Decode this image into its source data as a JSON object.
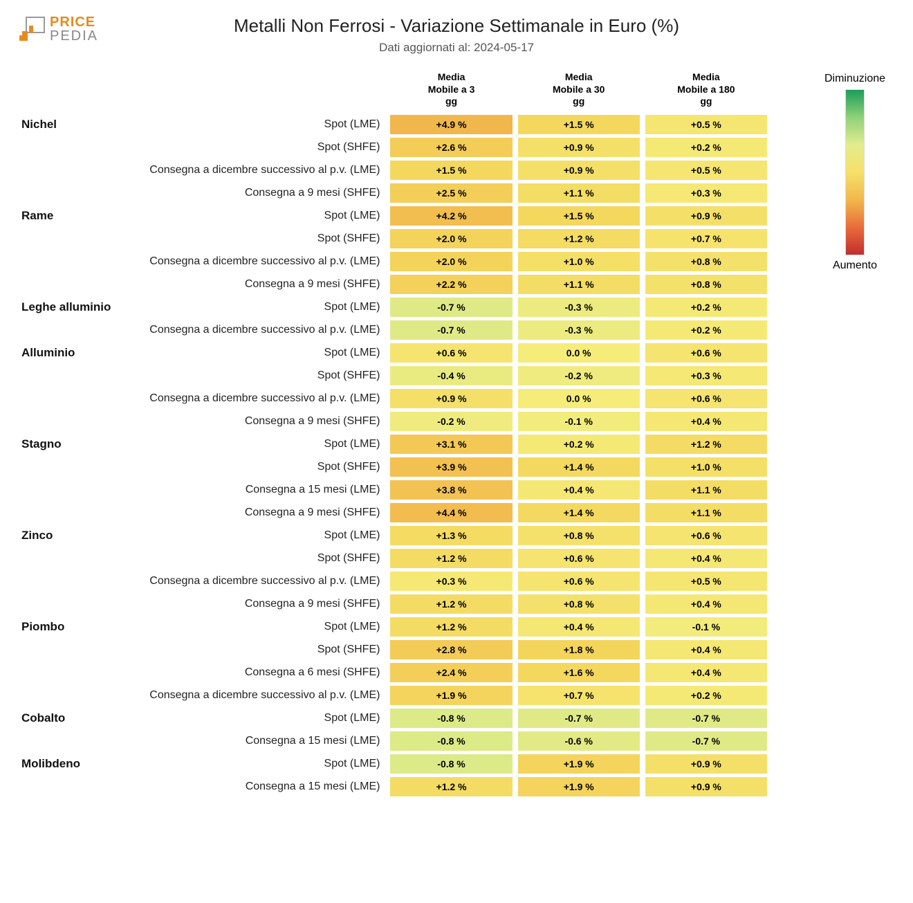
{
  "logo": {
    "brand_top": "PRICE",
    "brand_bottom": "PEDIA",
    "accent": "#e78b1f",
    "gray": "#9a9a9a"
  },
  "title": "Metalli Non Ferrosi - Variazione Settimanale in Euro (%)",
  "subtitle": "Dati aggiornati al: 2024-05-17",
  "columns": [
    "Media\nMobile a 3\ngg",
    "Media\nMobile a 30\ngg",
    "Media\nMobile a 180\ngg"
  ],
  "legend": {
    "top": "Diminuzione",
    "bottom": "Aumento",
    "gradient_stops": [
      "#1b9e5a",
      "#8fd17a",
      "#e3ec8e",
      "#f6e06a",
      "#f2b84c",
      "#e96c3c",
      "#c22e2e"
    ]
  },
  "scale": {
    "neg": -1.0,
    "mid": 0.0,
    "pos": 5.0,
    "color_neg": "#d6e98c",
    "color_zero": "#f5ec7a",
    "color_low": "#f4d85e",
    "color_high": "#f1b64b"
  },
  "groups": [
    {
      "name": "Nichel",
      "rows": [
        {
          "label": "Spot (LME)",
          "v": [
            4.9,
            1.5,
            0.5
          ]
        },
        {
          "label": "Spot (SHFE)",
          "v": [
            2.6,
            0.9,
            0.2
          ]
        },
        {
          "label": "Consegna a dicembre successivo al p.v. (LME)",
          "v": [
            1.5,
            0.9,
            0.5
          ]
        },
        {
          "label": "Consegna a 9 mesi (SHFE)",
          "v": [
            2.5,
            1.1,
            0.3
          ]
        }
      ]
    },
    {
      "name": "Rame",
      "rows": [
        {
          "label": "Spot (LME)",
          "v": [
            4.2,
            1.5,
            0.9
          ]
        },
        {
          "label": "Spot (SHFE)",
          "v": [
            2.0,
            1.2,
            0.7
          ]
        },
        {
          "label": "Consegna a dicembre successivo al p.v. (LME)",
          "v": [
            2.0,
            1.0,
            0.8
          ]
        },
        {
          "label": "Consegna a 9 mesi (SHFE)",
          "v": [
            2.2,
            1.1,
            0.8
          ]
        }
      ]
    },
    {
      "name": "Leghe alluminio",
      "rows": [
        {
          "label": "Spot (LME)",
          "v": [
            -0.7,
            -0.3,
            0.2
          ]
        },
        {
          "label": "Consegna a dicembre successivo al p.v. (LME)",
          "v": [
            -0.7,
            -0.3,
            0.2
          ]
        }
      ]
    },
    {
      "name": "Alluminio",
      "rows": [
        {
          "label": "Spot (LME)",
          "v": [
            0.6,
            0.0,
            0.6
          ]
        },
        {
          "label": "Spot (SHFE)",
          "v": [
            -0.4,
            -0.2,
            0.3
          ]
        },
        {
          "label": "Consegna a dicembre successivo al p.v. (LME)",
          "v": [
            0.9,
            0.0,
            0.6
          ]
        },
        {
          "label": "Consegna a 9 mesi (SHFE)",
          "v": [
            -0.2,
            -0.1,
            0.4
          ]
        }
      ]
    },
    {
      "name": "Stagno",
      "rows": [
        {
          "label": "Spot (LME)",
          "v": [
            3.1,
            0.2,
            1.2
          ]
        },
        {
          "label": "Spot (SHFE)",
          "v": [
            3.9,
            1.4,
            1.0
          ]
        },
        {
          "label": "Consegna a 15 mesi (LME)",
          "v": [
            3.8,
            0.4,
            1.1
          ]
        },
        {
          "label": "Consegna a 9 mesi (SHFE)",
          "v": [
            4.4,
            1.4,
            1.1
          ]
        }
      ]
    },
    {
      "name": "Zinco",
      "rows": [
        {
          "label": "Spot (LME)",
          "v": [
            1.3,
            0.8,
            0.6
          ]
        },
        {
          "label": "Spot (SHFE)",
          "v": [
            1.2,
            0.6,
            0.4
          ]
        },
        {
          "label": "Consegna a dicembre successivo al p.v. (LME)",
          "v": [
            0.3,
            0.6,
            0.5
          ]
        },
        {
          "label": "Consegna a 9 mesi (SHFE)",
          "v": [
            1.2,
            0.8,
            0.4
          ]
        }
      ]
    },
    {
      "name": "Piombo",
      "rows": [
        {
          "label": "Spot (LME)",
          "v": [
            1.2,
            0.4,
            -0.1
          ]
        },
        {
          "label": "Spot (SHFE)",
          "v": [
            2.8,
            1.8,
            0.4
          ]
        },
        {
          "label": "Consegna a 6 mesi (SHFE)",
          "v": [
            2.4,
            1.6,
            0.4
          ]
        },
        {
          "label": "Consegna a dicembre successivo al p.v. (LME)",
          "v": [
            1.9,
            0.7,
            0.2
          ]
        }
      ]
    },
    {
      "name": "Cobalto",
      "rows": [
        {
          "label": "Spot (LME)",
          "v": [
            -0.8,
            -0.7,
            -0.7
          ]
        },
        {
          "label": "Consegna a 15 mesi (LME)",
          "v": [
            -0.8,
            -0.6,
            -0.7
          ]
        }
      ]
    },
    {
      "name": "Molibdeno",
      "rows": [
        {
          "label": "Spot (LME)",
          "v": [
            -0.8,
            1.9,
            0.9
          ]
        },
        {
          "label": "Consegna a 15 mesi (LME)",
          "v": [
            1.2,
            1.9,
            0.9
          ]
        }
      ]
    }
  ]
}
